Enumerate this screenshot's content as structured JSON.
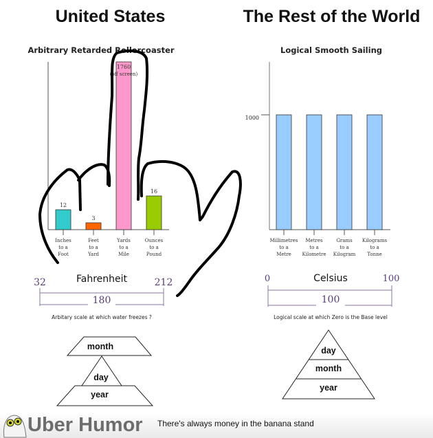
{
  "headings": {
    "left": "United States",
    "right": "The Rest of the World"
  },
  "chart_data": [
    {
      "type": "bar",
      "title": "Arbitrary Retarded Rollercoaster",
      "categories": [
        [
          "Inches",
          "to a",
          "Foot"
        ],
        [
          "Feet",
          "to a",
          "Yard"
        ],
        [
          "Yards",
          "to a",
          "Mile"
        ],
        [
          "Ounces",
          "to a",
          "Pound"
        ]
      ],
      "values": [
        12,
        3,
        1760,
        16
      ],
      "data_labels": [
        "12",
        "3",
        "1760",
        "16"
      ],
      "annotation": "(off screen)",
      "colors": [
        "#33cccc",
        "#ff6600",
        "#ff99cc",
        "#99cc00"
      ]
    },
    {
      "type": "bar",
      "title": "Logical Smooth Sailing",
      "categories": [
        [
          "Millimetres",
          "to a",
          "Metre"
        ],
        [
          "Metres",
          "to a",
          "Kilometre"
        ],
        [
          "Grams",
          "to a",
          "Kilogram"
        ],
        [
          "Kilograms",
          "to a",
          "Tonne"
        ]
      ],
      "values": [
        1000,
        1000,
        1000,
        1000
      ],
      "y_ticks": [
        "1000"
      ],
      "colors": [
        "#99ccff",
        "#99ccff",
        "#99ccff",
        "#99ccff"
      ]
    }
  ],
  "scales": {
    "left": {
      "name": "Fahrenheit",
      "low": "32",
      "high": "212",
      "span": "180",
      "caption": "Arbitary scale at which water freezes ?"
    },
    "right": {
      "name": "Celsius",
      "low": "0",
      "high": "100",
      "span": "100",
      "caption": "Logical scale at which Zero is the Base level"
    }
  },
  "pyramids": {
    "left": {
      "top": "month",
      "middle": "day",
      "bottom": "year"
    },
    "right": {
      "top": "day",
      "middle": "month",
      "bottom": "year"
    }
  },
  "footer": {
    "brand": "Uber Humor",
    "tagline": "There's always money in the banana stand"
  }
}
